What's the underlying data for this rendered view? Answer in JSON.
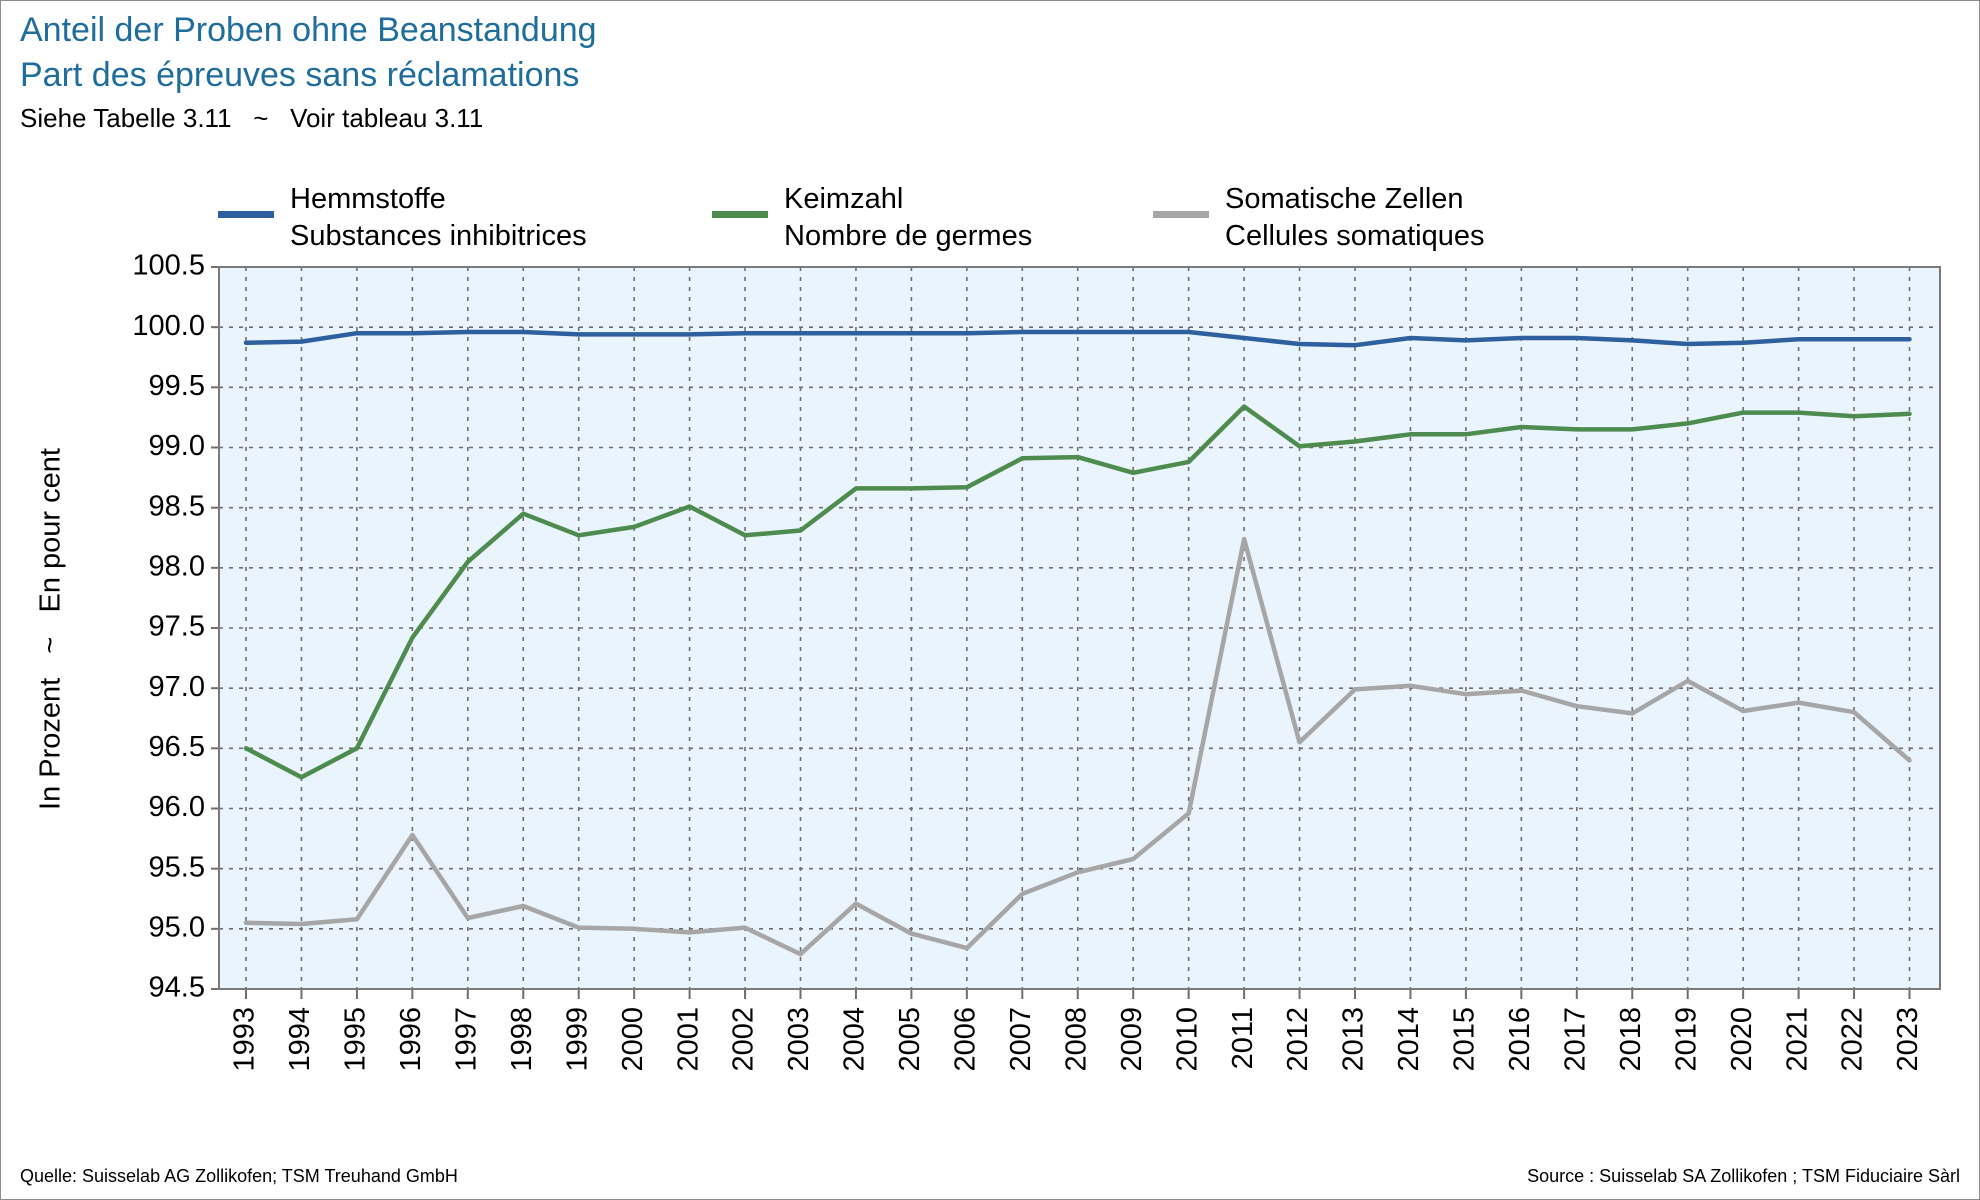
{
  "header": {
    "title_de": "Anteil der Proben ohne Beanstandung",
    "title_fr": "Part des épreuves sans réclamations",
    "subtitle": "Siehe Tabelle 3.11   ~   Voir tableau 3.11"
  },
  "footer": {
    "source_left": "Quelle: Suisselab AG Zollikofen; TSM Treuhand GmbH",
    "source_right": "Source : Suisselab SA Zollikofen ; TSM Fiduciaire Sàrl"
  },
  "chart_data": {
    "type": "line",
    "title": "Anteil der Proben ohne Beanstandung",
    "subtitle": "Part des épreuves sans réclamations",
    "xlabel": "",
    "ylabel": "In Prozent   ~   En pour cent",
    "x": [
      "1993",
      "1994",
      "1995",
      "1996",
      "1997",
      "1998",
      "1999",
      "2000",
      "2001",
      "2002",
      "2003",
      "2004",
      "2005",
      "2006",
      "2007",
      "2008",
      "2009",
      "2010",
      "2011",
      "2012",
      "2013",
      "2014",
      "2015",
      "2016",
      "2017",
      "2018",
      "2019",
      "2020",
      "2021",
      "2022",
      "2023"
    ],
    "ylim": [
      94.5,
      100.5
    ],
    "yticks": [
      "94.5",
      "95.0",
      "95.5",
      "96.0",
      "96.5",
      "97.0",
      "97.5",
      "98.0",
      "98.5",
      "99.0",
      "99.5",
      "100.0",
      "100.5"
    ],
    "grid": true,
    "legend_position": "top",
    "series": [
      {
        "name_de": "Hemmstoffe",
        "name_fr": "Substances inhibitrices",
        "color": "#2e5f9e",
        "values": [
          99.87,
          99.88,
          99.95,
          99.95,
          99.96,
          99.96,
          99.94,
          99.94,
          99.94,
          99.95,
          99.95,
          99.95,
          99.95,
          99.95,
          99.96,
          99.96,
          99.96,
          99.96,
          99.91,
          99.86,
          99.85,
          99.91,
          99.89,
          99.91,
          99.91,
          99.89,
          99.86,
          99.87,
          99.9,
          99.9,
          99.9
        ]
      },
      {
        "name_de": "Keimzahl",
        "name_fr": "Nombre de germes",
        "color": "#4e8b4e",
        "values": [
          96.5,
          96.26,
          96.5,
          97.42,
          98.05,
          98.45,
          98.27,
          98.34,
          98.51,
          98.27,
          98.31,
          98.66,
          98.66,
          98.67,
          98.91,
          98.92,
          98.79,
          98.88,
          99.34,
          99.01,
          99.05,
          99.11,
          99.11,
          99.17,
          99.15,
          99.15,
          99.2,
          99.29,
          99.29,
          99.26,
          99.28
        ]
      },
      {
        "name_de": "Somatische Zellen",
        "name_fr": "Cellules somatiques",
        "color": "#a6a6a6",
        "values": [
          95.05,
          95.04,
          95.08,
          95.78,
          95.09,
          95.19,
          95.01,
          95.0,
          94.97,
          95.01,
          94.79,
          95.21,
          94.96,
          94.84,
          95.29,
          95.47,
          95.58,
          95.96,
          98.24,
          96.55,
          96.99,
          97.02,
          96.95,
          96.98,
          96.85,
          96.79,
          97.06,
          96.81,
          96.88,
          96.8,
          96.4
        ]
      }
    ]
  }
}
